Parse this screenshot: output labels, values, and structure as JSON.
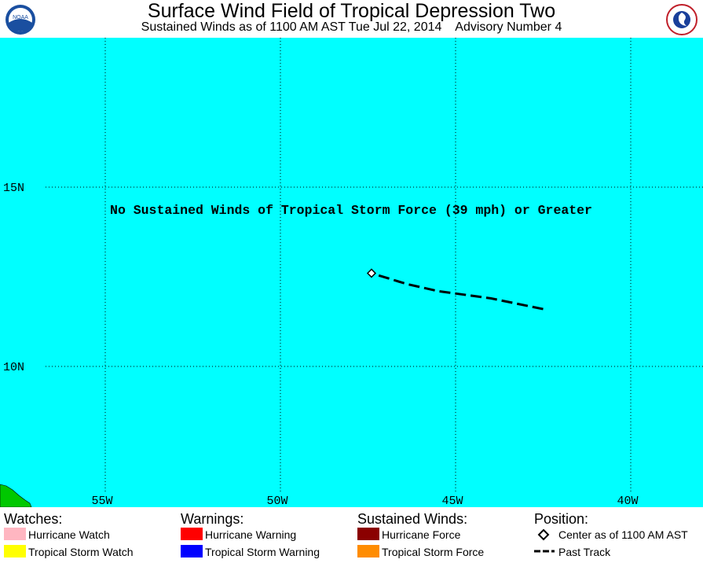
{
  "header": {
    "title": "Surface Wind Field of Tropical Depression Two",
    "subtitle": "Sustained Winds as of 1100 AM AST Tue Jul 22, 2014    Advisory Number 4",
    "noaa_logo_text": "NOAA",
    "nws_logo_text": "NATIONAL WEATHER SERVICE"
  },
  "map": {
    "ocean_color": "#00ffff",
    "land_color": "#00c800",
    "lat_labels": [
      "15N",
      "10N"
    ],
    "lon_labels": [
      "55W",
      "50W",
      "45W",
      "40W"
    ],
    "notice": "No Sustained Winds of Tropical Storm Force (39 mph) or Greater",
    "center_position": {
      "lon": -47.4,
      "lat": 12.6
    },
    "past_track": [
      {
        "lon": -42.5,
        "lat": 11.6
      },
      {
        "lon": -44.0,
        "lat": 11.9
      },
      {
        "lon": -45.5,
        "lat": 12.1
      },
      {
        "lon": -46.4,
        "lat": 12.3
      },
      {
        "lon": -47.4,
        "lat": 12.6
      }
    ]
  },
  "legend": {
    "watches": {
      "heading": "Watches:",
      "items": [
        {
          "label": "Hurricane Watch",
          "color": "#ffb6c1"
        },
        {
          "label": "Tropical Storm Watch",
          "color": "#ffff00"
        }
      ]
    },
    "warnings": {
      "heading": "Warnings:",
      "items": [
        {
          "label": "Hurricane Warning",
          "color": "#ff0000"
        },
        {
          "label": "Tropical Storm Warning",
          "color": "#0000ff"
        }
      ]
    },
    "winds": {
      "heading": "Sustained Winds:",
      "items": [
        {
          "label": "Hurricane Force",
          "color": "#8b0000"
        },
        {
          "label": "Tropical Storm Force",
          "color": "#ff8c00"
        }
      ]
    },
    "position": {
      "heading": "Position:",
      "center_label": "Center as of 1100 AM AST",
      "track_label": "Past Track"
    }
  }
}
